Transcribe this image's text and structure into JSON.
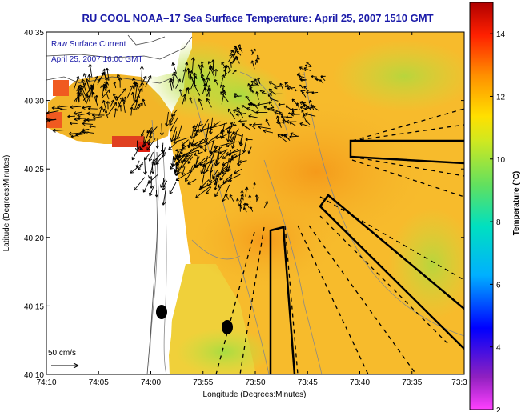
{
  "chart_data": {
    "type": "heatmap",
    "title": "RU COOL  NOAA–17  Sea Surface Temperature:  April 25, 2007 1510 GMT",
    "xlabel": "Longitude (Degrees:Minutes)",
    "ylabel": "Latitude (Degrees:Minutes)",
    "colorbar_label": "Temperature (°C)",
    "x_ticks": [
      "74:10",
      "74:05",
      "74:00",
      "73:55",
      "73:50",
      "73:45",
      "73:40",
      "73:35",
      "73:3"
    ],
    "y_ticks": [
      "40:35",
      "40:30",
      "40:25",
      "40:20",
      "40:15",
      "40:10"
    ],
    "colorbar_ticks": [
      "14",
      "12",
      "10",
      "8",
      "6",
      "4",
      "2"
    ],
    "colorbar_range": [
      2,
      15
    ],
    "legend": {
      "line1": "Raw Surface Current",
      "line2": "April 25, 2007 16:00 GMT"
    },
    "scale_label": "50 cm/s",
    "colors": {
      "title": "#1a1aa8",
      "land": "#ffffff",
      "warm_sst": "#f5a020",
      "cool_sst": "#c8e040"
    }
  }
}
